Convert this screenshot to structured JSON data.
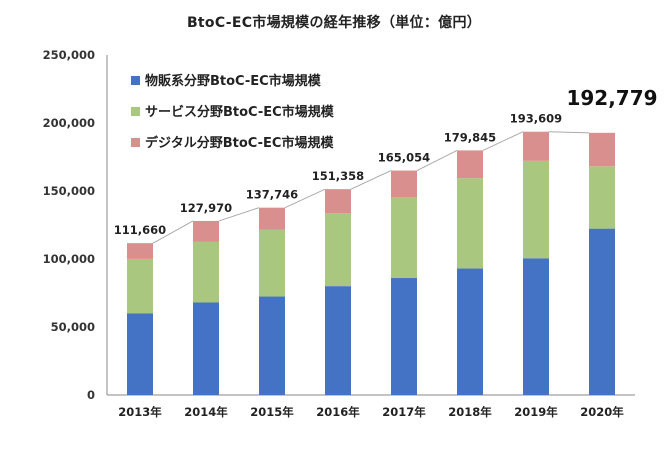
{
  "title": "BtoC-EC市場規模の経年推移（単位：億円）",
  "colors": {
    "goods": "#4472c4",
    "services": "#a9c77e",
    "digital": "#da8f8f",
    "connector": "#aaaaaa"
  },
  "chart_data": {
    "type": "bar",
    "stacked": true,
    "title": "BtoC-EC市場規模の経年推移（単位：億円）",
    "xlabel": "",
    "ylabel": "",
    "categories": [
      "2013年",
      "2014年",
      "2015年",
      "2016年",
      "2017年",
      "2018年",
      "2019年",
      "2020年"
    ],
    "ylim": [
      0,
      250000
    ],
    "yticks": [
      0,
      50000,
      100000,
      150000,
      200000,
      250000
    ],
    "ytick_labels": [
      "0",
      "50,000",
      "100,000",
      "150,000",
      "200,000",
      "250,000"
    ],
    "series": [
      {
        "name": "物販系分野BtoC-EC市場規模",
        "color": "#4472c4",
        "values": [
          59931,
          68043,
          72398,
          80043,
          86008,
          92992,
          100515,
          122333
        ]
      },
      {
        "name": "サービス分野BtoC-EC市場規模",
        "color": "#a9c77e",
        "values": [
          40143,
          44816,
          49014,
          53532,
          59568,
          66471,
          71672,
          45832
        ]
      },
      {
        "name": "デジタル分野BtoC-EC市場規模",
        "color": "#da8f8f",
        "values": [
          11586,
          15111,
          16334,
          17783,
          19478,
          20382,
          21422,
          24614
        ]
      }
    ],
    "totals": [
      111660,
      127970,
      137746,
      151358,
      165054,
      179845,
      193609,
      192779
    ],
    "total_labels": [
      "111,660",
      "127,970",
      "137,746",
      "151,358",
      "165,054",
      "179,845",
      "193,609",
      "192,779"
    ],
    "legend_position": "top-left",
    "grid": false
  }
}
